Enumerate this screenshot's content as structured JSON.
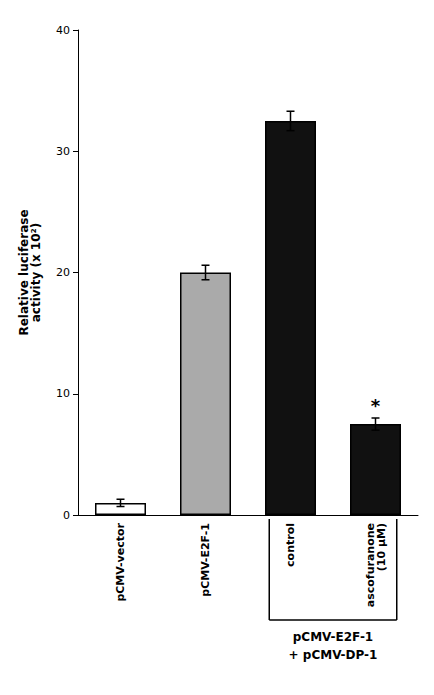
{
  "chart_data": {
    "type": "bar",
    "categories": [
      "pCMV-vector",
      "pCMV-E2F-1",
      "control",
      "ascofuranone\n(10 μM)"
    ],
    "values": [
      1.0,
      20.0,
      32.5,
      7.5
    ],
    "errors": [
      0.3,
      0.6,
      0.8,
      0.5
    ],
    "colors": [
      "#ffffff",
      "#aaaaaa",
      "#111111",
      "#111111"
    ],
    "ylabel": "Relative luciferase\nactivity (x 10²)",
    "ylim": [
      0,
      40
    ],
    "yticks": [
      0,
      10,
      20,
      30,
      40
    ],
    "grid": false,
    "annotations": [
      {
        "text": "*",
        "categories": [
          "ascofuranone\n(10 μM)"
        ]
      },
      {
        "type": "bracket",
        "text": "pCMV-E2F-1\n+ pCMV-DP-1",
        "categories": [
          "control",
          "ascofuranone\n(10 μM)"
        ]
      }
    ]
  }
}
